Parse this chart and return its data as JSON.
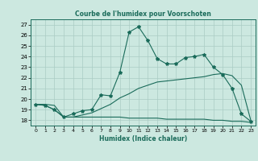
{
  "title": "Courbe de l'humidex pour Voorschoten",
  "xlabel": "Humidex (Indice chaleur)",
  "bg_color": "#cce8e0",
  "grid_color": "#aaccC4",
  "line_color": "#1a6b5a",
  "xlim": [
    -0.5,
    23.5
  ],
  "ylim": [
    17.5,
    27.5
  ],
  "xticks": [
    0,
    1,
    2,
    3,
    4,
    5,
    6,
    7,
    8,
    9,
    10,
    11,
    12,
    13,
    14,
    15,
    16,
    17,
    18,
    19,
    20,
    21,
    22,
    23
  ],
  "yticks": [
    18,
    19,
    20,
    21,
    22,
    23,
    24,
    25,
    26,
    27
  ],
  "series1_x": [
    0,
    1,
    2,
    3,
    4,
    5,
    6,
    7,
    8,
    9,
    10,
    11,
    12,
    13,
    14,
    15,
    16,
    17,
    18,
    19,
    20,
    21,
    22,
    23
  ],
  "series1_y": [
    19.5,
    19.4,
    19.0,
    18.3,
    18.6,
    18.9,
    19.0,
    20.4,
    20.3,
    22.5,
    26.3,
    26.8,
    25.5,
    23.8,
    23.3,
    23.3,
    23.9,
    24.0,
    24.2,
    23.0,
    22.3,
    21.0,
    18.6,
    17.9
  ],
  "series2_x": [
    0,
    1,
    2,
    3,
    4,
    5,
    6,
    7,
    8,
    9,
    10,
    11,
    12,
    13,
    14,
    15,
    16,
    17,
    18,
    19,
    20,
    21,
    22,
    23
  ],
  "series2_y": [
    19.5,
    19.5,
    19.4,
    18.3,
    18.3,
    18.5,
    18.7,
    19.1,
    19.5,
    20.1,
    20.5,
    21.0,
    21.3,
    21.6,
    21.7,
    21.8,
    21.9,
    22.0,
    22.1,
    22.3,
    22.4,
    22.2,
    21.3,
    18.0
  ],
  "series3_x": [
    0,
    1,
    2,
    3,
    4,
    5,
    6,
    7,
    8,
    9,
    10,
    11,
    12,
    13,
    14,
    15,
    16,
    17,
    18,
    19,
    20,
    21,
    22,
    23
  ],
  "series3_y": [
    19.5,
    19.4,
    19.0,
    18.3,
    18.3,
    18.3,
    18.3,
    18.3,
    18.3,
    18.3,
    18.2,
    18.2,
    18.2,
    18.2,
    18.1,
    18.1,
    18.1,
    18.1,
    18.1,
    18.0,
    18.0,
    17.9,
    17.9,
    17.8
  ]
}
